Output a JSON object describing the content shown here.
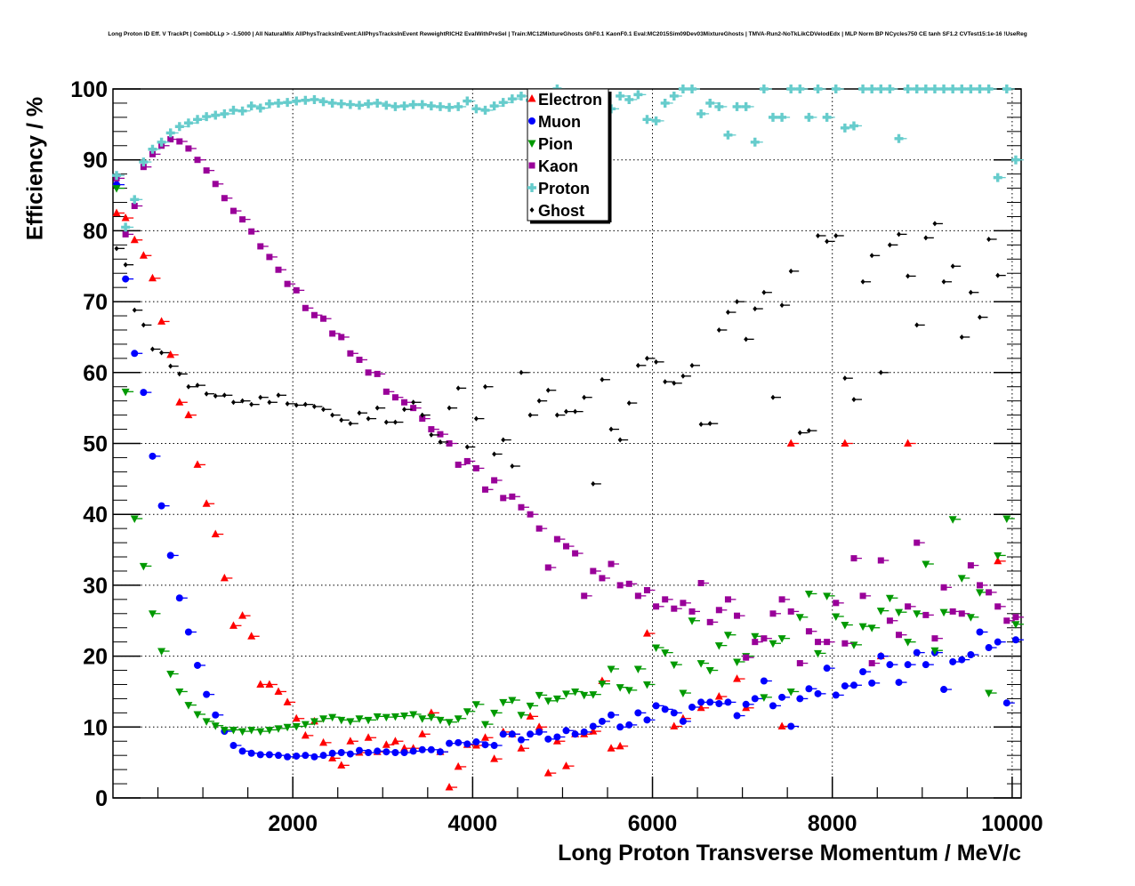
{
  "chart_data": {
    "type": "scatter",
    "title": "Long Proton ID Eff. V TrackPt | CombDLLp > -1.5000 | All NaturalMix AllPhysTracksInEvent:AllPhysTracksInEvent ReweightRICH2 EvalWithPreSel | Train:MC12MixtureGhosts GhF0.1 KaonF0.1 Eval:MC2015Sim09Dev03MixtureGhosts | TMVA-Run2-NoTkLikCDVelodEdx | MLP Norm BP NCycles750 CE tanh SF1.2 CVTest15:1e-16 !UseReg",
    "xlabel": "Long Proton Transverse Momentum / MeV/c",
    "ylabel": "Efficiency / %",
    "xlim": [
      0,
      10100
    ],
    "ylim": [
      0,
      100
    ],
    "xticks": [
      "2000",
      "4000",
      "6000",
      "8000",
      "10000"
    ],
    "yticks": [
      "0",
      "10",
      "20",
      "30",
      "40",
      "50",
      "60",
      "70",
      "80",
      "90",
      "100"
    ],
    "grid": true,
    "legend_position": "top-center",
    "x_start": 40,
    "x_step": 100,
    "series": [
      {
        "name": "Electron",
        "color": "#ff0000",
        "marker": "triangle-up",
        "values": [
          82.5,
          81.8,
          78.7,
          76.5,
          73.3,
          67.2,
          62.5,
          55.8,
          54,
          47,
          41.5,
          37.2,
          31,
          24.3,
          25.7,
          22.8,
          16,
          16,
          15,
          13.5,
          11.2,
          8.8,
          10.8,
          7.8,
          5.6,
          4.6,
          8,
          6.4,
          8.5,
          6.5,
          7.5,
          8,
          7,
          7,
          9,
          12,
          6.5,
          1.5,
          4.4,
          7.5,
          7.4,
          8.5,
          5.5,
          9.3,
          9,
          7,
          11.5,
          10,
          3.5,
          8,
          4.5,
          9,
          9,
          9.4,
          16.5,
          7,
          7.3,
          null,
          null,
          23.2,
          null,
          null,
          10.1,
          11.2,
          null,
          12.7,
          null,
          14.3,
          null,
          16.8,
          12.7,
          null,
          null,
          null,
          10.1,
          50,
          null,
          null,
          null,
          null,
          null,
          50,
          null,
          null,
          null,
          20,
          null,
          null,
          50,
          null,
          null,
          null,
          null,
          null,
          null,
          null,
          null,
          null,
          33.4,
          null,
          null
        ]
      },
      {
        "name": "Muon",
        "color": "#0000ff",
        "marker": "circle",
        "values": [
          86.5,
          73.2,
          62.7,
          57.2,
          48.2,
          41.2,
          34.2,
          28.2,
          23.4,
          18.7,
          14.6,
          11.7,
          9.4,
          7.4,
          6.6,
          6.3,
          6.1,
          6.1,
          6,
          5.8,
          5.9,
          6,
          5.8,
          6,
          6.3,
          6.4,
          6.2,
          6.7,
          6.4,
          6.6,
          6.5,
          6.4,
          6.4,
          6.6,
          6.8,
          6.8,
          6.5,
          7.7,
          7.8,
          7.6,
          7.9,
          7.5,
          7.4,
          9,
          9,
          8.2,
          9,
          9.3,
          8.3,
          8.6,
          9.5,
          9,
          9.3,
          10.1,
          10.8,
          11.7,
          10,
          10.3,
          12,
          11,
          13,
          12.5,
          12,
          10.8,
          12.8,
          13.5,
          13.5,
          13.3,
          13.5,
          11.6,
          13.2,
          14,
          16.5,
          13,
          14.2,
          10.1,
          14,
          15.4,
          14.7,
          18.3,
          14.5,
          15.8,
          15.9,
          17.8,
          16.2,
          20,
          18.8,
          16.3,
          18.8,
          20.5,
          18.8,
          20.5,
          15.3,
          19.2,
          19.5,
          20.2,
          23.4,
          21.2,
          22,
          13.4,
          22.3
        ]
      },
      {
        "name": "Pion",
        "color": "#009900",
        "marker": "triangle-down",
        "values": [
          86,
          57.3,
          39.4,
          32.7,
          26,
          20.7,
          17.5,
          15,
          13.1,
          11.8,
          10.8,
          10.2,
          9.6,
          9.6,
          9.4,
          9.6,
          9.4,
          9.6,
          9.8,
          10,
          10.1,
          10.4,
          10.8,
          11.2,
          11.4,
          11,
          10.8,
          11.2,
          11,
          11.5,
          11.4,
          11.5,
          11.6,
          11.8,
          11.2,
          11.4,
          11,
          10.7,
          11.2,
          12.2,
          13.2,
          10.4,
          12,
          13.5,
          13.8,
          11.7,
          13,
          14.5,
          13.7,
          14,
          14.7,
          15,
          14.5,
          14.6,
          16.1,
          18.2,
          15.6,
          15.2,
          18.2,
          16,
          21.2,
          20.5,
          18.8,
          14.8,
          25,
          19,
          18,
          21.5,
          23,
          19.2,
          20,
          22.8,
          14.2,
          21.8,
          22.5,
          15,
          25.5,
          28.8,
          20.4,
          28.5,
          25.6,
          24.4,
          21.6,
          24.2,
          24,
          26.4,
          28.2,
          26.2,
          22,
          26,
          33,
          20.8,
          26.2,
          39.3,
          31,
          25.5,
          29,
          14.8,
          34.2,
          39.4,
          24.5
        ]
      },
      {
        "name": "Kaon",
        "color": "#990099",
        "marker": "square",
        "values": [
          87.4,
          79.5,
          83.5,
          89,
          90.8,
          92,
          92.9,
          92.6,
          91.6,
          90,
          88.5,
          86.6,
          84.6,
          82.8,
          81.6,
          79.9,
          77.8,
          76.3,
          74.5,
          72.5,
          71.6,
          69.1,
          68.1,
          67.6,
          65.5,
          65,
          62.7,
          61.8,
          60,
          59.8,
          57.3,
          56.5,
          55.8,
          55,
          53.5,
          52,
          51.3,
          50,
          47,
          47.5,
          46.5,
          43.5,
          44.8,
          42.3,
          42.5,
          41,
          40,
          38,
          32.5,
          36.5,
          35.5,
          34.5,
          28.5,
          32,
          31,
          33,
          30,
          30.2,
          28.5,
          29.3,
          27,
          28,
          26.7,
          27.5,
          26.3,
          30.3,
          24.8,
          26.5,
          28,
          25.7,
          19.8,
          22,
          22.5,
          26,
          28,
          26.3,
          19,
          23.5,
          22,
          22,
          27.5,
          21.8,
          33.8,
          28.5,
          19,
          33.5,
          25,
          23,
          27,
          36,
          25.8,
          22.5,
          29.7,
          26.3,
          26,
          32.8,
          30,
          29,
          27,
          25,
          25.5
        ]
      },
      {
        "name": "Proton",
        "color": "#66cccc",
        "marker": "cross",
        "values": [
          87.8,
          80.5,
          84.4,
          89.7,
          91.5,
          92.5,
          93.8,
          94.7,
          95.2,
          95.7,
          96.1,
          96.3,
          96.5,
          97,
          96.9,
          97.6,
          97.3,
          97.9,
          98,
          98.1,
          98.3,
          98.4,
          98.5,
          98.2,
          98,
          97.9,
          97.8,
          97.7,
          97.9,
          98,
          97.7,
          97.5,
          97.6,
          97.8,
          97.8,
          97.6,
          97.5,
          97.4,
          97.5,
          98.3,
          97.2,
          97,
          97.6,
          98.1,
          98.6,
          99,
          98.4,
          97.5,
          98.5,
          100,
          98.5,
          98,
          99,
          97.7,
          98.2,
          97.2,
          99,
          98.5,
          99.2,
          95.7,
          95.5,
          98,
          99,
          100,
          100,
          96.5,
          98,
          97.5,
          93.5,
          97.5,
          97.5,
          92.5,
          100,
          96,
          96,
          100,
          100,
          96,
          100,
          96,
          100,
          94.5,
          94.8,
          100,
          100,
          100,
          100,
          93,
          100,
          100,
          100,
          100,
          100,
          100,
          100,
          100,
          100,
          100,
          87.5,
          100,
          90
        ]
      },
      {
        "name": "Ghost",
        "color": "#000000",
        "marker": "diamond",
        "values": [
          77.5,
          75.2,
          68.8,
          66.7,
          63.3,
          62.8,
          60.9,
          59.8,
          58,
          58.2,
          57,
          56.7,
          56.8,
          55.8,
          56,
          55.5,
          56.5,
          55.8,
          56.8,
          55.6,
          55.4,
          55.5,
          55.2,
          54.8,
          54,
          53.3,
          52.8,
          54.3,
          53.5,
          55,
          53,
          53,
          54.8,
          55.8,
          54,
          51.2,
          50.2,
          55,
          57.8,
          49.5,
          53.5,
          58,
          48.5,
          50.5,
          46.8,
          60,
          54,
          56,
          57.5,
          54,
          54.5,
          54.5,
          56.5,
          44.3,
          59,
          52,
          50.5,
          55.7,
          61,
          62,
          61.5,
          58.7,
          58.5,
          59.5,
          61,
          52.7,
          52.8,
          66,
          68.5,
          70,
          64.7,
          69,
          71.3,
          56.5,
          69.5,
          74.3,
          51.5,
          51.8,
          79.3,
          78.5,
          79.3,
          59.2,
          56.2,
          72.8,
          76.5,
          60,
          78,
          79.5,
          73.6,
          66.7,
          79,
          81,
          72.8,
          75,
          65,
          71.3,
          67.8,
          78.8,
          73.7,
          null,
          null
        ]
      }
    ]
  }
}
